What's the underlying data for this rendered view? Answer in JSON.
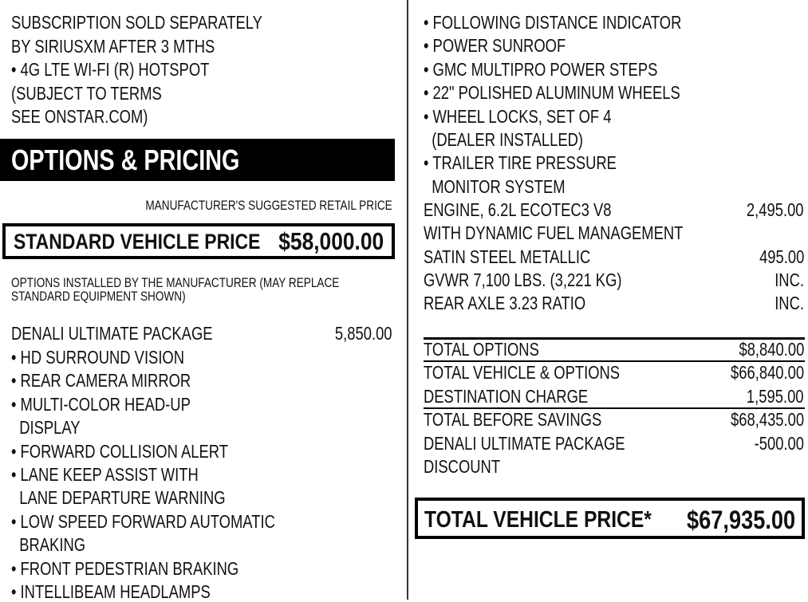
{
  "left_top_lines": [
    "SUBSCRIPTION SOLD SEPARATELY",
    "BY SIRIUSXM AFTER 3 MTHS",
    "• 4G LTE WI-FI (R) HOTSPOT",
    "(SUBJECT TO TERMS",
    "SEE ONSTAR.COM)"
  ],
  "section_title": "OPTIONS & PRICING",
  "msrp_label": "MANUFACTURER'S SUGGESTED RETAIL PRICE",
  "standard_price": {
    "label": "STANDARD VEHICLE PRICE",
    "amount": "$58,000.00"
  },
  "options_note": [
    "OPTIONS INSTALLED BY THE MANUFACTURER (MAY REPLACE",
    "STANDARD EQUIPMENT SHOWN)"
  ],
  "package": {
    "name": "DENALI ULTIMATE PACKAGE",
    "amount": "5,850.00"
  },
  "left_features": [
    "• HD SURROUND VISION",
    "• REAR CAMERA MIRROR",
    "• MULTI-COLOR HEAD-UP",
    "  DISPLAY",
    "• FORWARD COLLISION ALERT",
    "• LANE KEEP ASSIST WITH",
    "  LANE DEPARTURE WARNING",
    "• LOW SPEED FORWARD AUTOMATIC",
    "  BRAKING",
    "• FRONT PEDESTRIAN BRAKING",
    "• INTELLIBEAM HEADLAMPS"
  ],
  "right_features": [
    "• FOLLOWING DISTANCE INDICATOR",
    "• POWER SUNROOF",
    "• GMC MULTIPRO POWER STEPS",
    "• 22\" POLISHED ALUMINUM WHEELS",
    "• WHEEL LOCKS, SET OF 4",
    "  (DEALER INSTALLED)",
    "• TRAILER TIRE PRESSURE",
    "  MONITOR SYSTEM"
  ],
  "right_options": [
    {
      "label": "ENGINE, 6.2L ECOTEC3 V8",
      "amount": "2,495.00"
    },
    {
      "label": "WITH DYNAMIC FUEL MANAGEMENT",
      "amount": ""
    },
    {
      "label": "SATIN STEEL METALLIC",
      "amount": "495.00"
    },
    {
      "label": "GVWR 7,100 LBS. (3,221 KG)",
      "amount": "INC."
    },
    {
      "label": "REAR AXLE 3.23 RATIO",
      "amount": "INC."
    }
  ],
  "totals": [
    {
      "label": "TOTAL OPTIONS",
      "amount": "$8,840.00"
    },
    {
      "label": "TOTAL VEHICLE & OPTIONS",
      "amount": "$66,840.00"
    },
    {
      "label": "DESTINATION CHARGE",
      "amount": "1,595.00"
    },
    {
      "label": "TOTAL BEFORE SAVINGS",
      "amount": "$68,435.00"
    },
    {
      "label": "DENALI ULTIMATE PACKAGE",
      "amount": "-500.00"
    },
    {
      "label": "DISCOUNT",
      "amount": ""
    }
  ],
  "total_price": {
    "label": "TOTAL VEHICLE PRICE*",
    "amount": "$67,935.00"
  }
}
